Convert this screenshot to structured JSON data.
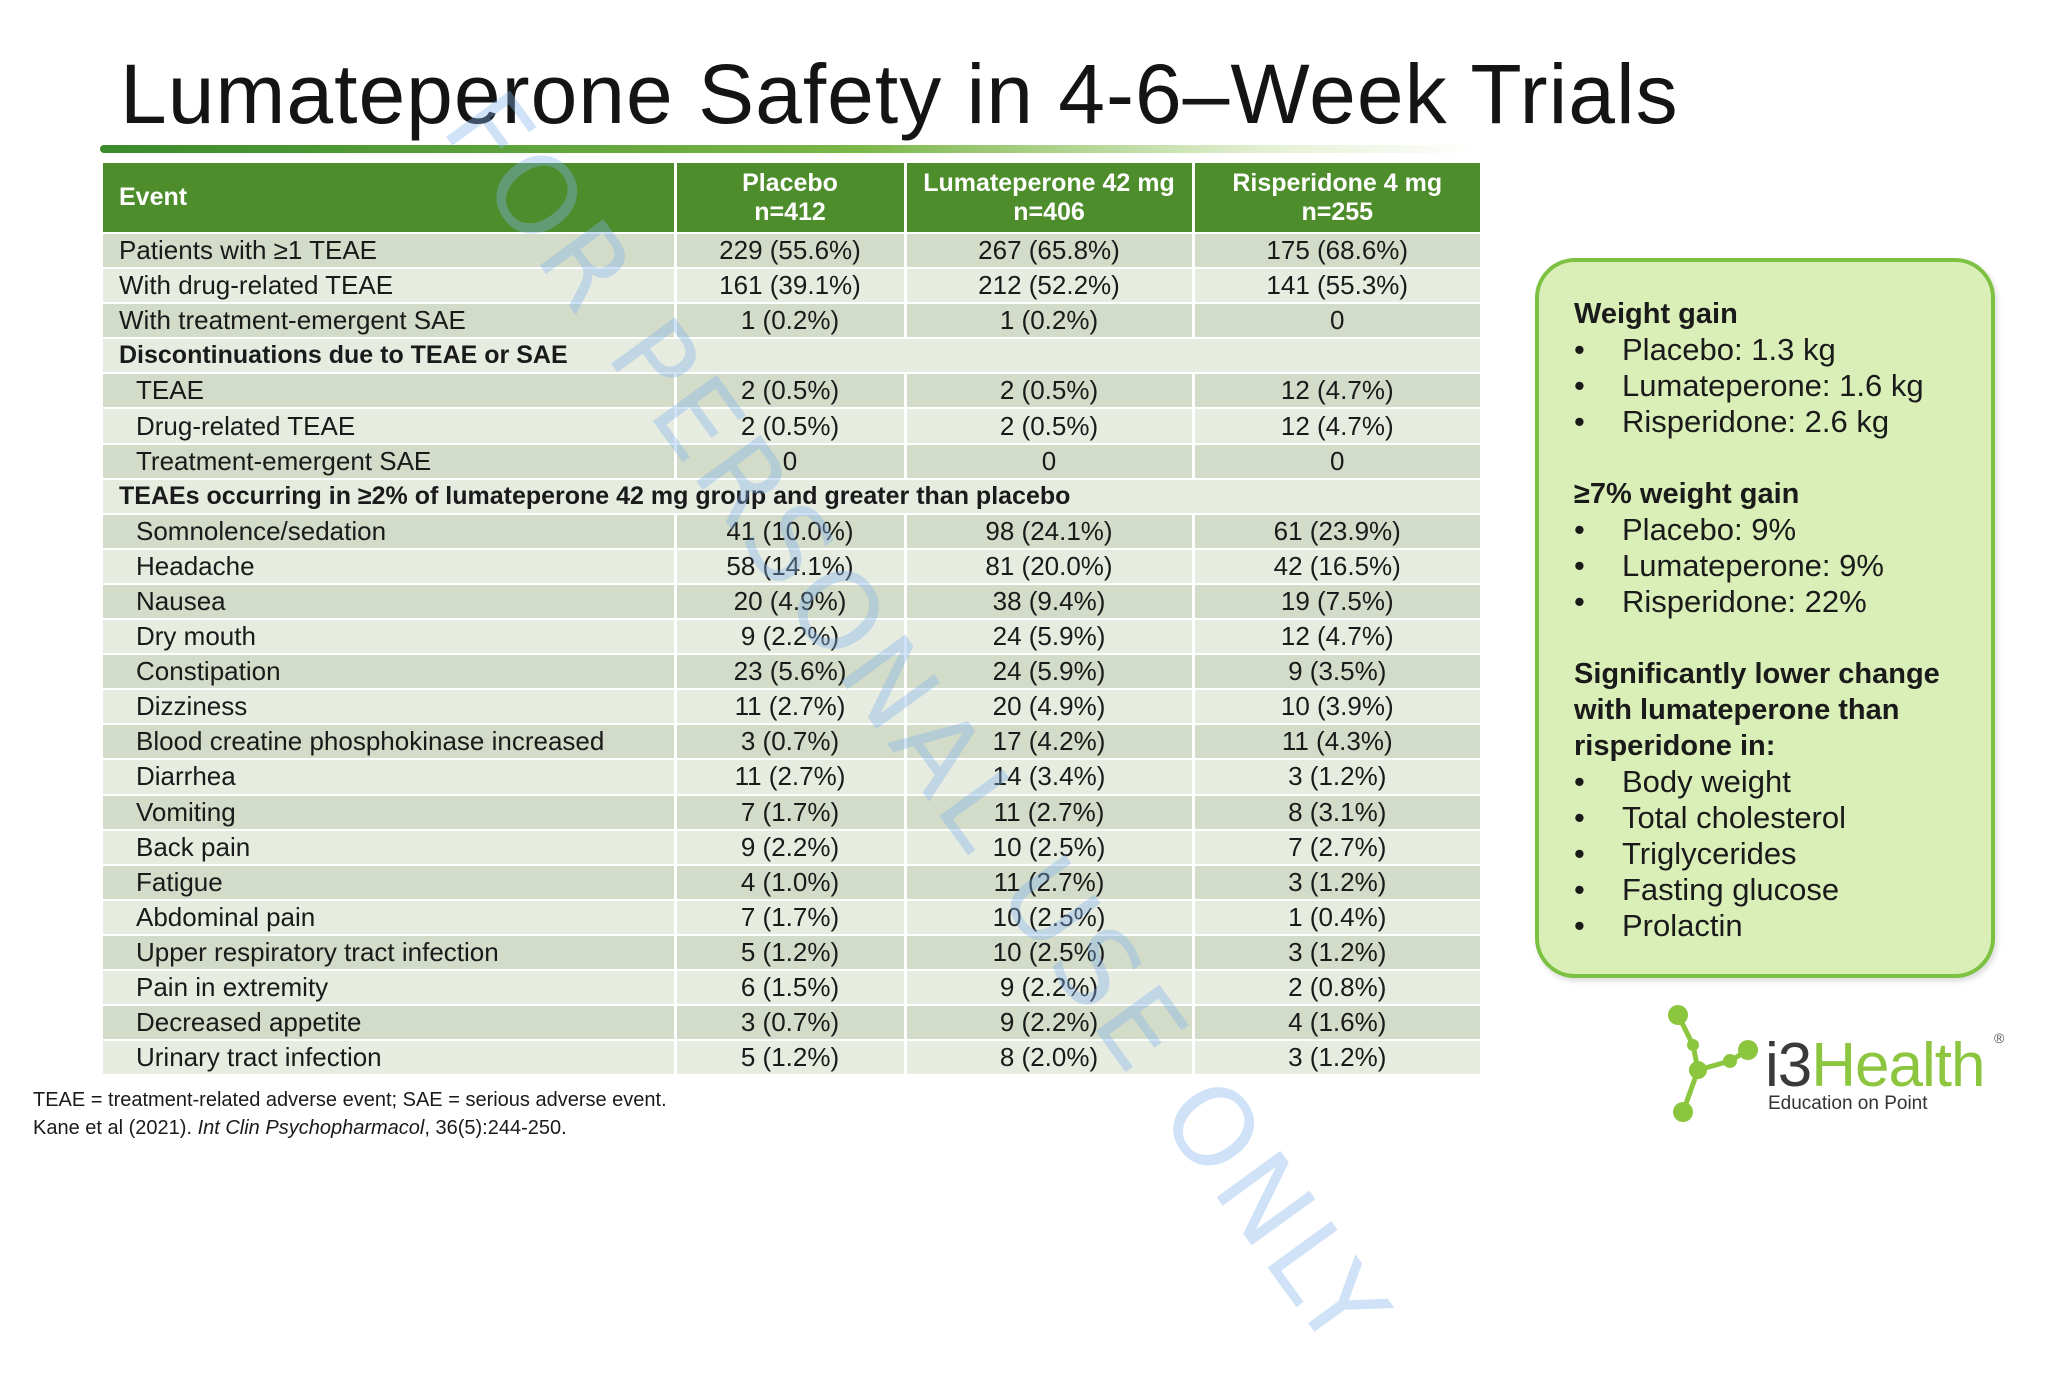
{
  "title": "Lumateperone Safety in 4-6–Week Trials",
  "watermark": "FOR PERSONAL USE ONLY",
  "table": {
    "headers": [
      {
        "line1": "Event",
        "line2": ""
      },
      {
        "line1": "Placebo",
        "line2": "n=412"
      },
      {
        "line1": "Lumateperone 42 mg",
        "line2": "n=406"
      },
      {
        "line1": "Risperidone 4 mg",
        "line2": "n=255"
      }
    ],
    "rows": [
      {
        "type": "data",
        "label": "Patients with ≥1 TEAE",
        "indent": false,
        "placebo": "229 (55.6%)",
        "lumateperone": "267 (65.8%)",
        "risperidone": "175 (68.6%)"
      },
      {
        "type": "data",
        "label": "With drug-related TEAE",
        "indent": false,
        "placebo": "161 (39.1%)",
        "lumateperone": "212 (52.2%)",
        "risperidone": "141 (55.3%)"
      },
      {
        "type": "data",
        "label": "With treatment-emergent SAE",
        "indent": false,
        "placebo": "1 (0.2%)",
        "lumateperone": "1 (0.2%)",
        "risperidone": "0"
      },
      {
        "type": "section",
        "label": "Discontinuations due to TEAE or SAE"
      },
      {
        "type": "data",
        "label": "TEAE",
        "indent": true,
        "placebo": "2 (0.5%)",
        "lumateperone": "2 (0.5%)",
        "risperidone": "12 (4.7%)"
      },
      {
        "type": "data",
        "label": "Drug-related TEAE",
        "indent": true,
        "placebo": "2 (0.5%)",
        "lumateperone": "2 (0.5%)",
        "risperidone": "12 (4.7%)"
      },
      {
        "type": "data",
        "label": "Treatment-emergent SAE",
        "indent": true,
        "placebo": "0",
        "lumateperone": "0",
        "risperidone": "0"
      },
      {
        "type": "section",
        "label": "TEAEs occurring in ≥2% of lumateperone 42 mg group and greater than placebo"
      },
      {
        "type": "data",
        "label": "Somnolence/sedation",
        "indent": true,
        "placebo": "41 (10.0%)",
        "lumateperone": "98 (24.1%)",
        "risperidone": "61 (23.9%)"
      },
      {
        "type": "data",
        "label": "Headache",
        "indent": true,
        "placebo": "58 (14.1%)",
        "lumateperone": "81 (20.0%)",
        "risperidone": "42 (16.5%)"
      },
      {
        "type": "data",
        "label": "Nausea",
        "indent": true,
        "placebo": "20 (4.9%)",
        "lumateperone": "38 (9.4%)",
        "risperidone": "19 (7.5%)"
      },
      {
        "type": "data",
        "label": "Dry mouth",
        "indent": true,
        "placebo": "9 (2.2%)",
        "lumateperone": "24 (5.9%)",
        "risperidone": "12 (4.7%)"
      },
      {
        "type": "data",
        "label": "Constipation",
        "indent": true,
        "placebo": "23 (5.6%)",
        "lumateperone": "24 (5.9%)",
        "risperidone": "9 (3.5%)"
      },
      {
        "type": "data",
        "label": "Dizziness",
        "indent": true,
        "placebo": "11 (2.7%)",
        "lumateperone": "20 (4.9%)",
        "risperidone": "10 (3.9%)"
      },
      {
        "type": "data",
        "label": "Blood creatine phosphokinase increased",
        "indent": true,
        "placebo": "3 (0.7%)",
        "lumateperone": "17 (4.2%)",
        "risperidone": "11 (4.3%)"
      },
      {
        "type": "data",
        "label": "Diarrhea",
        "indent": true,
        "placebo": "11 (2.7%)",
        "lumateperone": "14 (3.4%)",
        "risperidone": "3 (1.2%)"
      },
      {
        "type": "data",
        "label": "Vomiting",
        "indent": true,
        "placebo": "7 (1.7%)",
        "lumateperone": "11 (2.7%)",
        "risperidone": "8 (3.1%)"
      },
      {
        "type": "data",
        "label": "Back pain",
        "indent": true,
        "placebo": "9 (2.2%)",
        "lumateperone": "10 (2.5%)",
        "risperidone": "7 (2.7%)"
      },
      {
        "type": "data",
        "label": "Fatigue",
        "indent": true,
        "placebo": "4 (1.0%)",
        "lumateperone": "11 (2.7%)",
        "risperidone": "3 (1.2%)"
      },
      {
        "type": "data",
        "label": "Abdominal pain",
        "indent": true,
        "placebo": "7 (1.7%)",
        "lumateperone": "10 (2.5%)",
        "risperidone": "1 (0.4%)"
      },
      {
        "type": "data",
        "label": "Upper respiratory tract infection",
        "indent": true,
        "placebo": "5 (1.2%)",
        "lumateperone": "10 (2.5%)",
        "risperidone": "3 (1.2%)"
      },
      {
        "type": "data",
        "label": "Pain in extremity",
        "indent": true,
        "placebo": "6 (1.5%)",
        "lumateperone": "9 (2.2%)",
        "risperidone": "2 (0.8%)"
      },
      {
        "type": "data",
        "label": "Decreased appetite",
        "indent": true,
        "placebo": "3 (0.7%)",
        "lumateperone": "9 (2.2%)",
        "risperidone": "4 (1.6%)"
      },
      {
        "type": "data",
        "label": "Urinary tract infection",
        "indent": true,
        "placebo": "5 (1.2%)",
        "lumateperone": "8 (2.0%)",
        "risperidone": "3 (1.2%)"
      }
    ]
  },
  "callout": {
    "sections": [
      {
        "heading": [
          "Weight gain"
        ],
        "items": [
          "Placebo: 1.3 kg",
          "Lumateperone: 1.6 kg",
          "Risperidone: 2.6 kg"
        ]
      },
      {
        "heading": [
          "≥7% weight gain"
        ],
        "items": [
          "Placebo: 9%",
          "Lumateperone: 9%",
          "Risperidone: 22%"
        ]
      },
      {
        "heading": [
          "Significantly lower change",
          "with lumateperone than",
          "risperidone in:"
        ],
        "items": [
          "Body weight",
          "Total cholesterol",
          "Triglycerides",
          "Fasting glucose",
          "Prolactin"
        ]
      }
    ],
    "bullet": "•"
  },
  "footnotes": {
    "abbreviations": "TEAE = treatment-related adverse event; SAE = serious adverse event.",
    "citation_authors": "Kane et al (2021). ",
    "citation_journal": "Int Clin Psychopharmacol",
    "citation_rest": ", 36(5):244-250."
  },
  "logo": {
    "brand_prefix": "i3",
    "brand_main": "Health",
    "registered": "®",
    "tagline": "Education on Point"
  },
  "colors": {
    "header_green": "#4e8d2b",
    "row_dark": "#d3dcc9",
    "row_light": "#e7ece1",
    "callout_fill": "#d9efb7",
    "callout_border": "#7cc142",
    "logo_green": "#8cc63f"
  }
}
